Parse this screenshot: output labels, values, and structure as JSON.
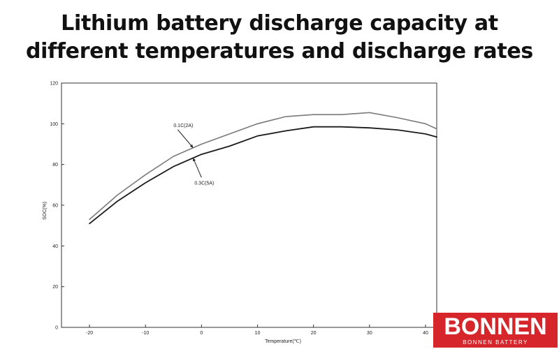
{
  "title": {
    "line1": "Lithium battery discharge capacity at",
    "line2": "different temperatures and discharge rates"
  },
  "chart_data": {
    "type": "line",
    "xlabel": "Temperature(℃)",
    "ylabel": "SOC(%)",
    "xlim": [
      -25,
      42
    ],
    "ylim": [
      0,
      120
    ],
    "x_ticks": [
      -20,
      -10,
      0,
      10,
      20,
      30,
      40
    ],
    "y_ticks": [
      0,
      20,
      40,
      60,
      80,
      100,
      120
    ],
    "grid": false,
    "series": [
      {
        "name": "0.1C(2A)",
        "x": [
          -20,
          -15,
          -10,
          -5,
          0,
          5,
          10,
          15,
          20,
          25,
          30,
          35,
          40,
          42
        ],
        "y": [
          53,
          65,
          75,
          84,
          90,
          95,
          100,
          103.5,
          104.5,
          104.5,
          105.5,
          103,
          100,
          97.5
        ]
      },
      {
        "name": "0.3C(5A)",
        "x": [
          -20,
          -15,
          -10,
          -5,
          0,
          5,
          10,
          15,
          20,
          25,
          30,
          35,
          40,
          42
        ],
        "y": [
          51,
          62,
          71,
          79,
          85,
          89,
          94,
          96.5,
          98.5,
          98.5,
          98,
          97,
          95,
          93.5
        ]
      }
    ],
    "annotations": [
      {
        "text": "0.1C(2A)",
        "series": 0,
        "x": 0
      },
      {
        "text": "0.3C(5A)",
        "series": 1,
        "x": 0
      }
    ]
  },
  "logo": {
    "name": "BONNEN",
    "tagline": "BONNEN BATTERY"
  }
}
